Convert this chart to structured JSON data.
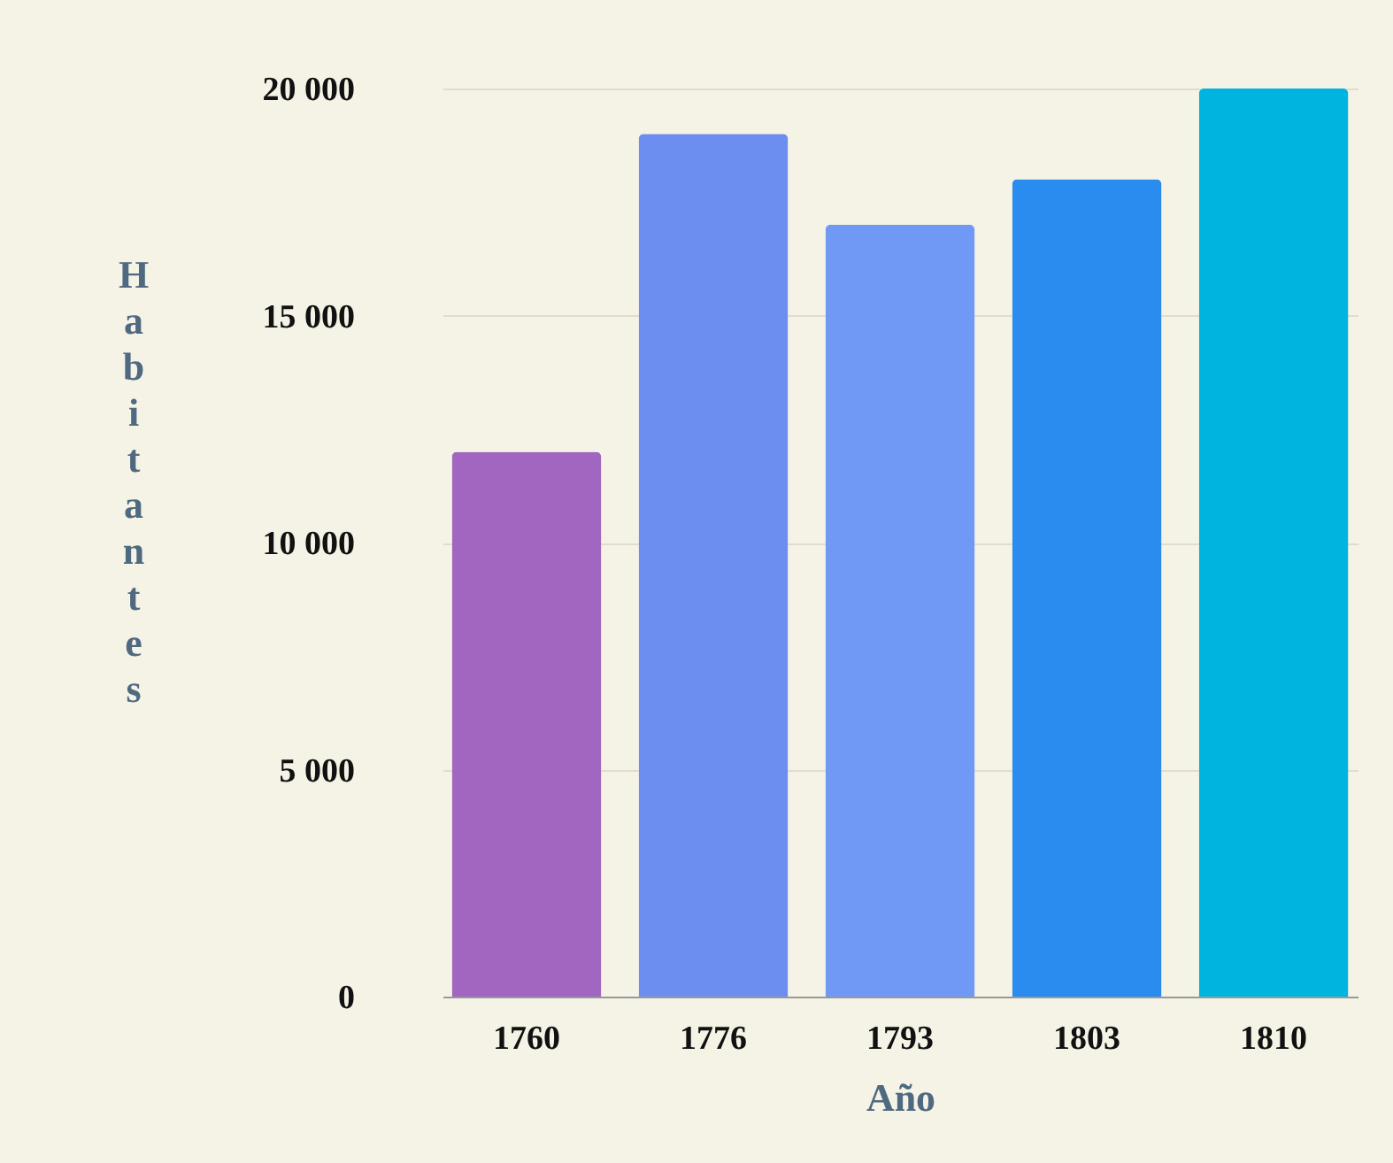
{
  "chart_data": {
    "type": "bar",
    "xlabel": "Año",
    "ylabel": "Habitantes",
    "categories": [
      "1760",
      "1776",
      "1793",
      "1803",
      "1810"
    ],
    "values": [
      12000,
      19000,
      17000,
      18000,
      20000
    ],
    "colors": [
      "#a066c0",
      "#6b8ef0",
      "#7098f5",
      "#2a8cee",
      "#00b4e0"
    ],
    "ylim": [
      0,
      20000
    ],
    "yticks": [
      {
        "value": 0,
        "label": "0"
      },
      {
        "value": 5000,
        "label": "5 000"
      },
      {
        "value": 10000,
        "label": "10 000"
      },
      {
        "value": 15000,
        "label": "15 000"
      },
      {
        "value": 20000,
        "label": "20 000"
      }
    ],
    "grid": "y"
  }
}
